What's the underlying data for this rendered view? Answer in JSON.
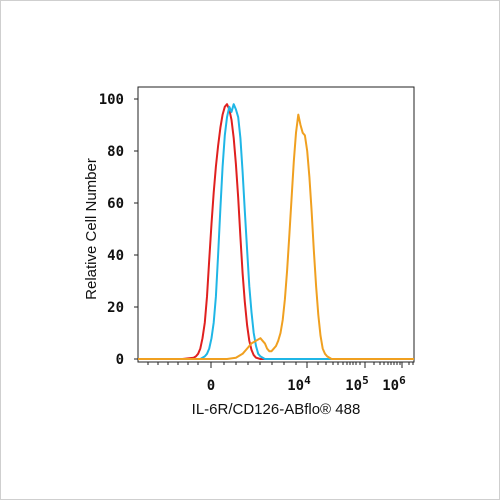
{
  "chart_data": {
    "type": "line",
    "title": "",
    "xlabel": "IL-6R/CD126-ABflo® 488",
    "ylabel": "Relative Cell Number",
    "ylim": [
      0,
      100
    ],
    "yticks": [
      "0",
      "20",
      "40",
      "60",
      "80",
      "100"
    ],
    "xticks": [
      {
        "label": "0",
        "exp": ""
      },
      {
        "label": "10",
        "exp": "4"
      },
      {
        "label": "10",
        "exp": "5"
      },
      {
        "label": "10",
        "exp": "6"
      }
    ],
    "xscale": "biexponential",
    "grid": false,
    "legend": "none",
    "series": [
      {
        "color": "#e0201f",
        "points": [
          [
            -30,
            0
          ],
          [
            -20,
            0
          ],
          [
            -10,
            0
          ],
          [
            -5,
            0.5
          ],
          [
            -4,
            1
          ],
          [
            -3,
            2
          ],
          [
            -2,
            4
          ],
          [
            -1,
            8
          ],
          [
            0,
            14
          ],
          [
            1,
            24
          ],
          [
            2,
            38
          ],
          [
            3,
            52
          ],
          [
            4,
            64
          ],
          [
            5,
            74
          ],
          [
            6,
            82
          ],
          [
            7,
            89
          ],
          [
            8,
            94
          ],
          [
            9,
            97
          ],
          [
            10,
            98
          ],
          [
            11,
            96
          ],
          [
            12,
            92
          ],
          [
            13,
            85
          ],
          [
            14,
            75
          ],
          [
            15,
            62
          ],
          [
            16,
            47
          ],
          [
            17,
            33
          ],
          [
            18,
            22
          ],
          [
            19,
            13
          ],
          [
            20,
            7
          ],
          [
            21,
            3.5
          ],
          [
            22,
            1.5
          ],
          [
            23,
            0.5
          ],
          [
            25,
            0
          ],
          [
            30,
            0
          ],
          [
            50,
            0
          ],
          [
            75,
            0
          ],
          [
            94,
            0
          ]
        ]
      },
      {
        "color": "#1fb6e6",
        "points": [
          [
            -30,
            0
          ],
          [
            -10,
            0
          ],
          [
            -2,
            0
          ],
          [
            0,
            1
          ],
          [
            1,
            2
          ],
          [
            2,
            4
          ],
          [
            3,
            8
          ],
          [
            4,
            14
          ],
          [
            5,
            24
          ],
          [
            6,
            40
          ],
          [
            7,
            58
          ],
          [
            8,
            74
          ],
          [
            9,
            86
          ],
          [
            10,
            93
          ],
          [
            11,
            97
          ],
          [
            12,
            95
          ],
          [
            13,
            98
          ],
          [
            14,
            96
          ],
          [
            15,
            93
          ],
          [
            16,
            85
          ],
          [
            17,
            72
          ],
          [
            18,
            57
          ],
          [
            19,
            42
          ],
          [
            20,
            28
          ],
          [
            21,
            18
          ],
          [
            22,
            10
          ],
          [
            23,
            5
          ],
          [
            24,
            2
          ],
          [
            25,
            1
          ],
          [
            27,
            0
          ],
          [
            35,
            0
          ],
          [
            50,
            0
          ],
          [
            75,
            0
          ],
          [
            94,
            0
          ]
        ]
      },
      {
        "color": "#f0a020",
        "points": [
          [
            -30,
            0
          ],
          [
            0,
            0
          ],
          [
            10,
            0
          ],
          [
            14,
            0.5
          ],
          [
            17,
            2
          ],
          [
            19,
            4
          ],
          [
            21,
            6
          ],
          [
            23,
            7
          ],
          [
            25,
            8
          ],
          [
            26,
            7
          ],
          [
            27,
            6
          ],
          [
            28,
            4
          ],
          [
            29,
            3
          ],
          [
            30,
            3
          ],
          [
            31,
            4
          ],
          [
            32,
            5
          ],
          [
            33,
            7
          ],
          [
            34,
            10
          ],
          [
            35,
            15
          ],
          [
            36,
            23
          ],
          [
            37,
            34
          ],
          [
            38,
            48
          ],
          [
            39,
            62
          ],
          [
            40,
            76
          ],
          [
            41,
            87
          ],
          [
            42,
            94
          ],
          [
            43,
            90
          ],
          [
            44,
            87
          ],
          [
            45,
            86
          ],
          [
            46,
            80
          ],
          [
            47,
            70
          ],
          [
            48,
            57
          ],
          [
            49,
            42
          ],
          [
            50,
            28
          ],
          [
            51,
            17
          ],
          [
            52,
            9
          ],
          [
            53,
            4
          ],
          [
            54,
            2
          ],
          [
            55,
            1
          ],
          [
            57,
            0
          ],
          [
            70,
            0
          ],
          [
            94,
            0
          ]
        ]
      }
    ]
  }
}
